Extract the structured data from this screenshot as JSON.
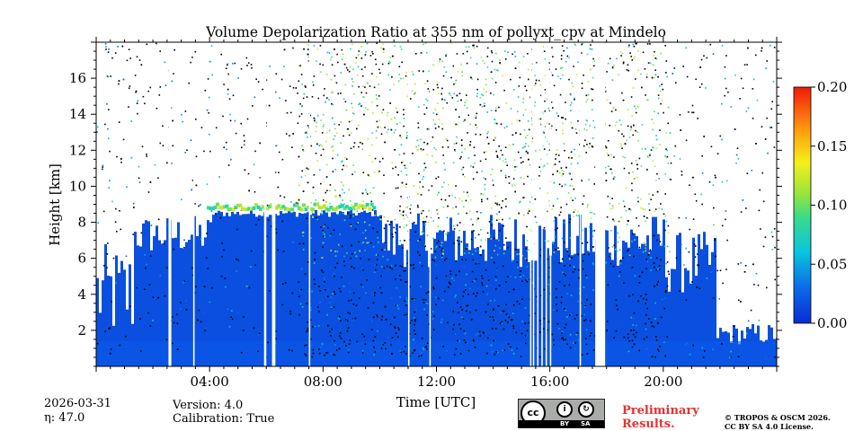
{
  "chart_data": {
    "type": "heatmap",
    "title": "Volume Depolarization Ratio at 355 nm of pollyxt_cpv at Mindelo",
    "xlabel": "Time [UTC]",
    "ylabel": "Height [km]",
    "xlim": [
      0,
      24
    ],
    "ylim": [
      0,
      18
    ],
    "x_ticks": [
      4,
      8,
      12,
      16,
      20
    ],
    "x_tick_labels": [
      "04:00",
      "08:00",
      "12:00",
      "16:00",
      "20:00"
    ],
    "y_ticks": [
      2,
      4,
      6,
      8,
      10,
      12,
      14,
      16
    ],
    "y_tick_labels": [
      "2",
      "4",
      "6",
      "8",
      "10",
      "12",
      "14",
      "16"
    ],
    "colorbar": {
      "min": 0.0,
      "max": 0.2,
      "ticks": [
        0.0,
        0.05,
        0.1,
        0.15,
        0.2
      ],
      "tick_labels": [
        "0.00",
        "0.05",
        "0.10",
        "0.15",
        "0.20"
      ],
      "colormap": "jet"
    },
    "background_value": 0.0,
    "cloud_layer": {
      "start": 3.9,
      "end": 9.8,
      "height": 8.3,
      "value": 0.1
    },
    "missing_data_hours": [
      [
        2.55,
        2.65
      ],
      [
        3.42,
        3.47
      ],
      [
        5.92,
        6.0
      ],
      [
        6.2,
        6.32
      ],
      [
        7.5,
        7.55
      ],
      [
        11.0,
        11.05
      ],
      [
        11.75,
        11.8
      ],
      [
        15.3,
        15.35
      ],
      [
        15.4,
        15.45
      ],
      [
        15.55,
        15.6
      ],
      [
        15.7,
        15.75
      ],
      [
        15.85,
        15.9
      ],
      [
        16.0,
        16.05
      ],
      [
        17.05,
        17.1
      ],
      [
        17.6,
        17.95
      ]
    ]
  },
  "footer": {
    "date": "2026-03-31",
    "eta_label": "η: 47.0",
    "version": "Version: 4.0",
    "calibration": "Calibration: True",
    "prelim_line1": "Preliminary",
    "prelim_line2": "Results.",
    "copyright_line1": "© TROPOS & OSCM 2026.",
    "copyright_line2": "CC BY SA 4.0 License.",
    "cc_by": "BY",
    "cc_sa": "SA"
  },
  "colors": {
    "background_blue": "#0a4fe0",
    "noise_dark": "#000000",
    "missing": "#ffffff"
  }
}
